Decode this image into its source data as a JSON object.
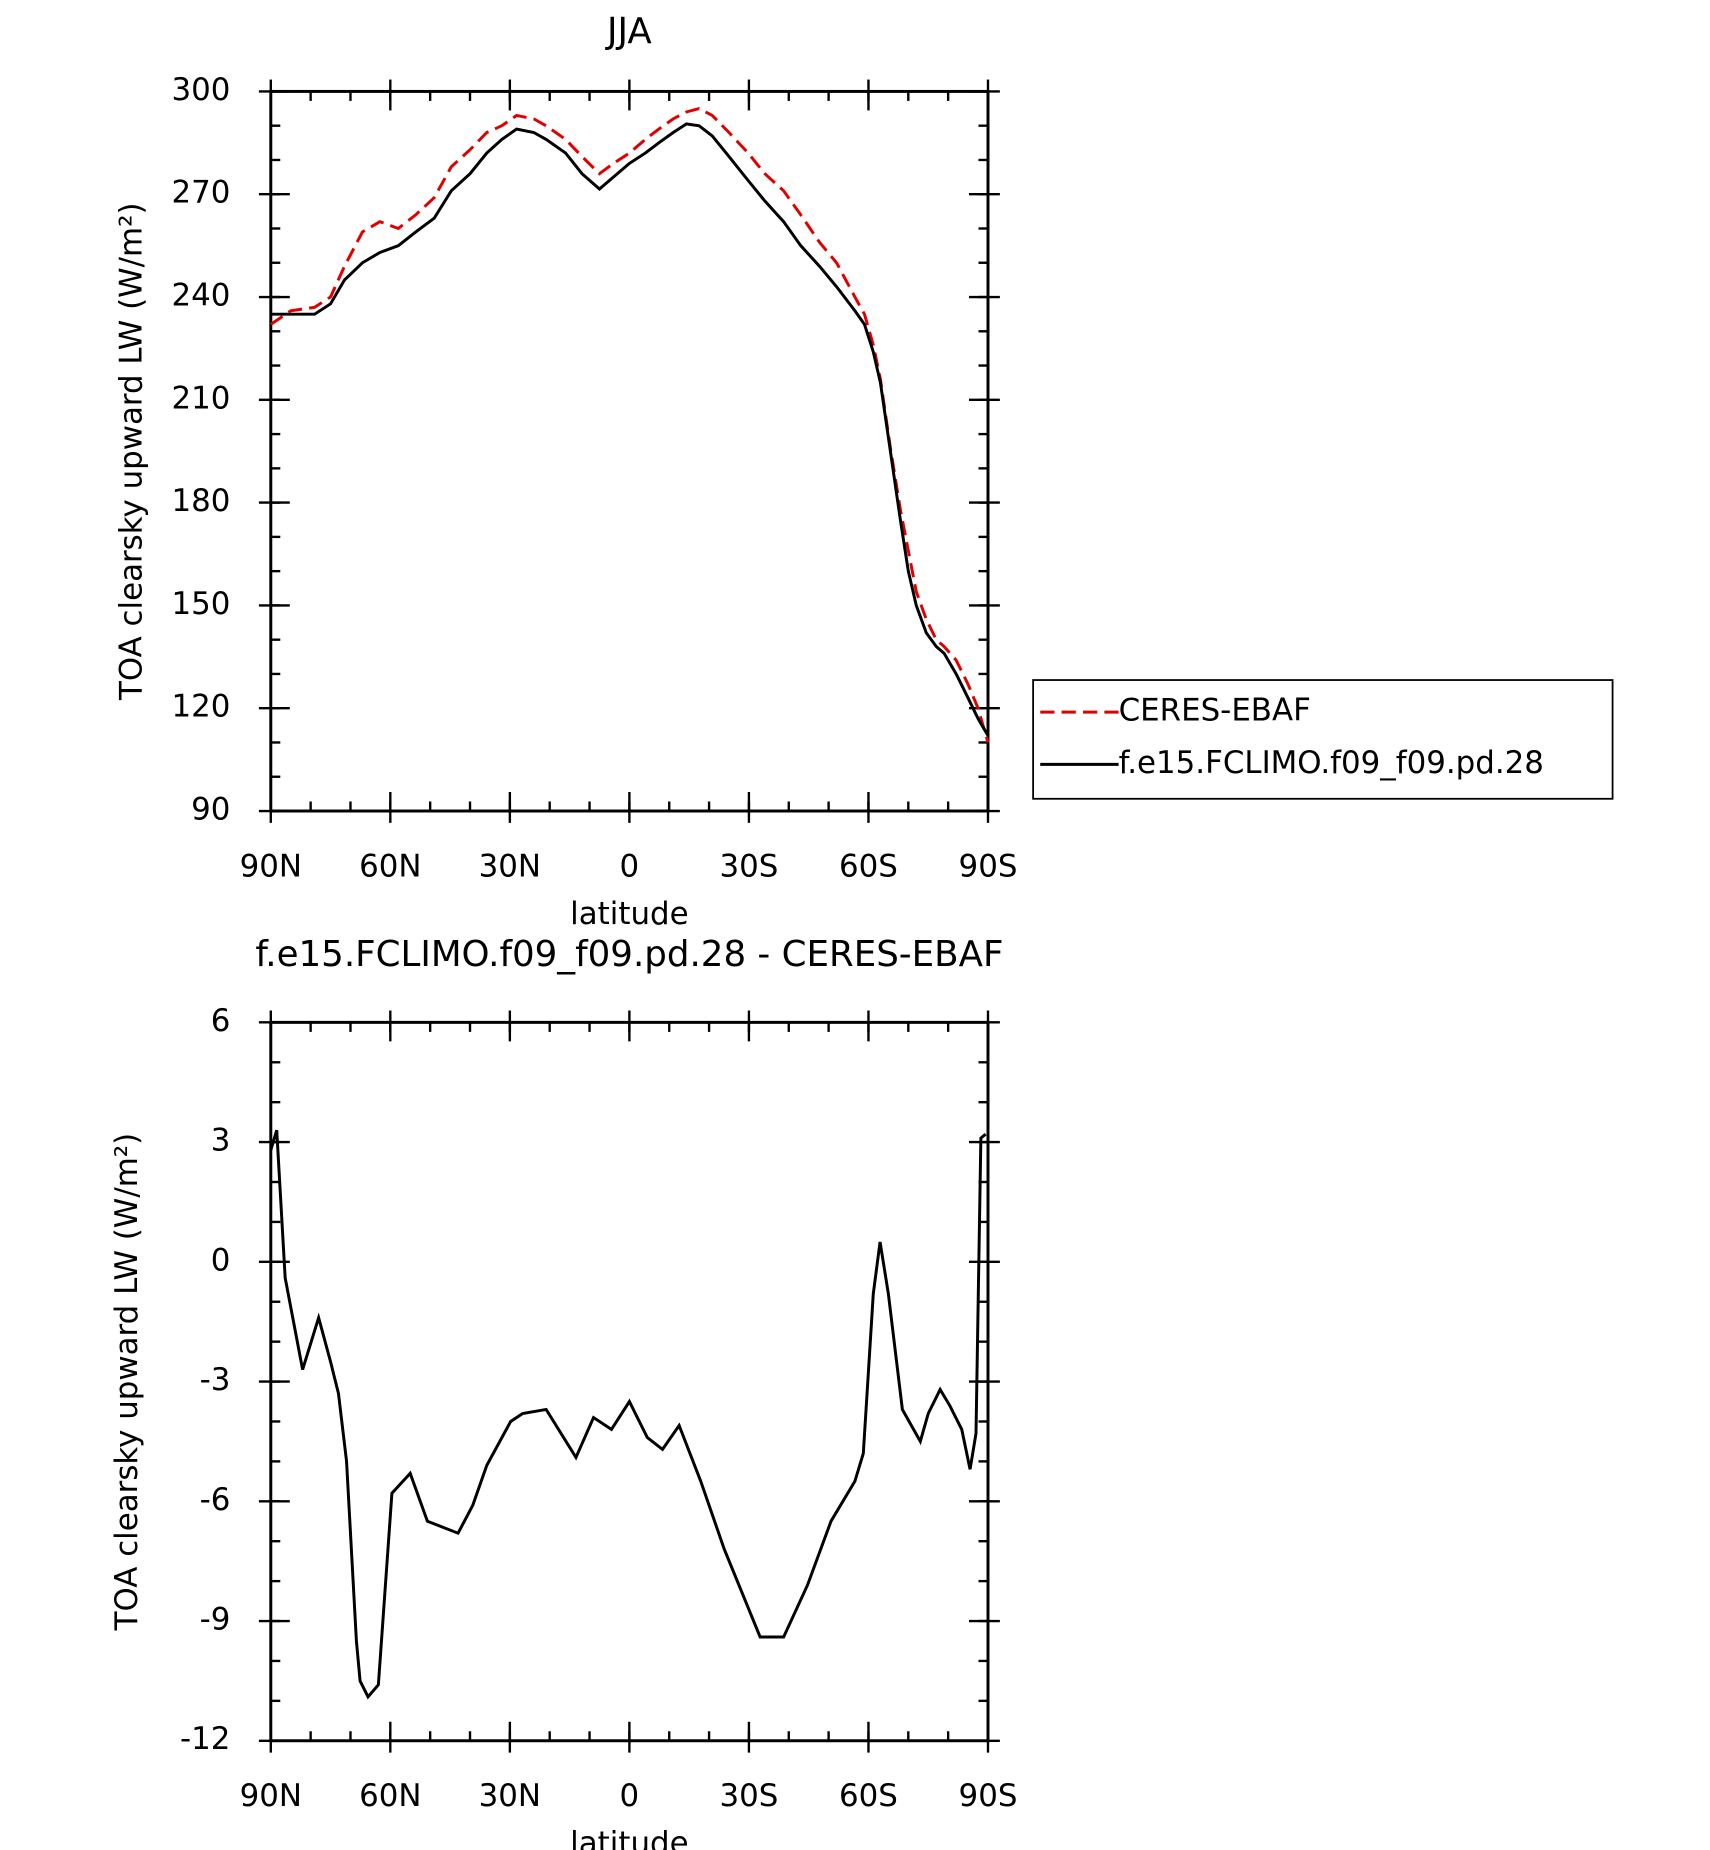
{
  "chart_data": [
    {
      "type": "line",
      "title": "JJA",
      "xlabel": "latitude",
      "ylabel": "TOA clearsky upward LW (W/m²)",
      "xlim": [
        90,
        -90
      ],
      "ylim": [
        90,
        300
      ],
      "xticks": [
        {
          "value": 90,
          "label": "90N"
        },
        {
          "value": 60,
          "label": "60N"
        },
        {
          "value": 30,
          "label": "30N"
        },
        0,
        {
          "value": -30,
          "label": "30S"
        },
        {
          "value": -60,
          "label": "60S"
        },
        {
          "value": -90,
          "label": "90S"
        }
      ],
      "yticks": [
        90,
        120,
        150,
        180,
        210,
        240,
        270,
        300
      ],
      "legend": "right",
      "x": [
        90,
        85,
        79,
        75,
        71.5,
        67,
        62.6,
        58,
        53.6,
        49,
        44.7,
        40,
        35.8,
        32,
        28.3,
        24,
        20.9,
        16,
        11.9,
        7.5,
        4,
        0,
        -4,
        -7.4,
        -11,
        -14.3,
        -17.5,
        -20.8,
        -25,
        -29.8,
        -34,
        -38.7,
        -43,
        -47.7,
        -52,
        -56.6,
        -59,
        -61.2,
        -63,
        -65.5,
        -68,
        -70,
        -72,
        -74.5,
        -77,
        -79,
        -82,
        -85,
        -87.5,
        -90
      ],
      "series": [
        {
          "name": "CERES-EBAF",
          "color": "#e00000",
          "dashed": true,
          "values": [
            232,
            236,
            237,
            240,
            249,
            259,
            262,
            260,
            264,
            269,
            278,
            283,
            288,
            290,
            293,
            292,
            290,
            286,
            281,
            276,
            279,
            282,
            286,
            289,
            292,
            294,
            295,
            293,
            288,
            282,
            276,
            271,
            264,
            256,
            250,
            240,
            235,
            226,
            216,
            196,
            178,
            166,
            154,
            146,
            140,
            138,
            134,
            127,
            120,
            110
          ]
        },
        {
          "name": "f.e15.FCLIMO.f09_f09.pd.28",
          "color": "#000000",
          "dashed": false,
          "values": [
            235,
            235,
            235,
            238,
            245,
            250,
            253,
            255,
            259,
            263,
            271,
            276,
            282,
            286,
            289,
            288,
            286,
            282,
            276,
            271.5,
            275,
            279,
            282,
            285,
            288,
            290.5,
            290,
            287,
            281,
            274,
            268,
            262,
            255,
            249,
            243,
            236,
            232,
            224,
            215,
            195,
            175,
            160,
            150,
            142,
            138,
            136,
            130,
            123,
            117,
            112
          ]
        }
      ]
    },
    {
      "type": "line",
      "title": "f.e15.FCLIMO.f09_f09.pd.28 - CERES-EBAF",
      "xlabel": "latitude",
      "ylabel": "TOA clearsky upward LW (W/m²)",
      "xlim": [
        90,
        -90
      ],
      "ylim": [
        -12,
        6
      ],
      "xticks": [
        {
          "value": 90,
          "label": "90N"
        },
        {
          "value": 60,
          "label": "60N"
        },
        {
          "value": 30,
          "label": "30N"
        },
        0,
        {
          "value": -30,
          "label": "30S"
        },
        {
          "value": -60,
          "label": "60S"
        },
        {
          "value": -90,
          "label": "90S"
        }
      ],
      "yticks": [
        -12,
        -9,
        -6,
        -3,
        0,
        3,
        6
      ],
      "x": [
        90,
        88.5,
        86.4,
        82,
        78,
        75,
        73,
        71,
        68.5,
        67.6,
        65.6,
        63,
        59.6,
        55,
        50.7,
        43,
        39.3,
        35.8,
        29.8,
        26.8,
        20.9,
        13.4,
        9,
        4.5,
        0,
        -4.5,
        -8.3,
        -12.5,
        -17.9,
        -23.8,
        -32.8,
        -38.7,
        -44.7,
        -50.6,
        -56.6,
        -58.7,
        -61.2,
        -62.9,
        -65,
        -68.5,
        -73,
        -75,
        -78,
        -80.4,
        -83.4,
        -85.5,
        -87,
        -88.2,
        -89.4
      ],
      "series": [
        {
          "name": "f.e15.FCLIMO.f09_f09.pd.28 - CERES-EBAF",
          "color": "#000000",
          "dashed": false,
          "values": [
            2.8,
            3.3,
            -0.4,
            -2.7,
            -1.4,
            -2.5,
            -3.3,
            -5,
            -9.5,
            -10.5,
            -10.9,
            -10.6,
            -5.8,
            -5.3,
            -6.5,
            -6.8,
            -6.1,
            -5.1,
            -4.0,
            -3.8,
            -3.7,
            -4.9,
            -3.9,
            -4.2,
            -3.5,
            -4.4,
            -4.7,
            -4.1,
            -5.5,
            -7.2,
            -9.4,
            -9.4,
            -8.1,
            -6.5,
            -5.5,
            -4.8,
            -0.8,
            0.5,
            -0.8,
            -3.7,
            -4.5,
            -3.8,
            -3.2,
            -3.6,
            -4.2,
            -5.2,
            -4.3,
            3.1,
            3.2
          ]
        }
      ]
    }
  ]
}
